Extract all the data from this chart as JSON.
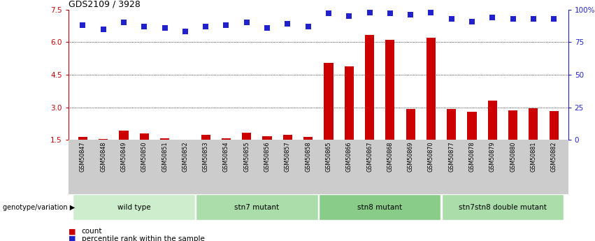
{
  "title": "GDS2109 / 3928",
  "samples": [
    "GSM50847",
    "GSM50848",
    "GSM50849",
    "GSM50850",
    "GSM50851",
    "GSM50852",
    "GSM50853",
    "GSM50854",
    "GSM50855",
    "GSM50856",
    "GSM50857",
    "GSM50858",
    "GSM50865",
    "GSM50866",
    "GSM50867",
    "GSM50868",
    "GSM50869",
    "GSM50870",
    "GSM50877",
    "GSM50878",
    "GSM50879",
    "GSM50880",
    "GSM50881",
    "GSM50882"
  ],
  "count_values": [
    1.62,
    1.52,
    1.92,
    1.78,
    1.58,
    1.48,
    1.72,
    1.56,
    1.82,
    1.67,
    1.72,
    1.62,
    5.05,
    4.9,
    6.35,
    6.1,
    2.92,
    6.22,
    2.92,
    2.78,
    3.32,
    2.85,
    2.95,
    2.82
  ],
  "percentile_values": [
    88,
    85,
    90,
    87,
    86,
    83,
    87,
    88,
    90,
    86,
    89,
    87,
    97,
    95,
    98,
    97,
    96,
    98,
    93,
    91,
    94,
    93,
    93,
    93
  ],
  "groups": [
    {
      "label": "wild type",
      "start": 0,
      "end": 6,
      "color": "#cceecc"
    },
    {
      "label": "stn7 mutant",
      "start": 6,
      "end": 12,
      "color": "#aaddaa"
    },
    {
      "label": "stn8 mutant",
      "start": 12,
      "end": 18,
      "color": "#88cc88"
    },
    {
      "label": "stn7stn8 double mutant",
      "start": 18,
      "end": 24,
      "color": "#aaddaa"
    }
  ],
  "ylim_left": [
    1.5,
    7.5
  ],
  "ylim_right": [
    0,
    100
  ],
  "yticks_left": [
    1.5,
    3.0,
    4.5,
    6.0,
    7.5
  ],
  "yticks_right": [
    0,
    25,
    50,
    75,
    100
  ],
  "ytick_labels_right": [
    "0",
    "25",
    "50",
    "75",
    "100%"
  ],
  "bar_color": "#cc0000",
  "dot_color": "#2222cc",
  "left_axis_color": "#cc0000",
  "right_axis_color": "#2222cc",
  "bg_color": "#ffffff",
  "label_bg_color": "#cccccc",
  "genotype_label": "genotype/variation",
  "legend_count_label": "count",
  "legend_percentile_label": "percentile rank within the sample"
}
